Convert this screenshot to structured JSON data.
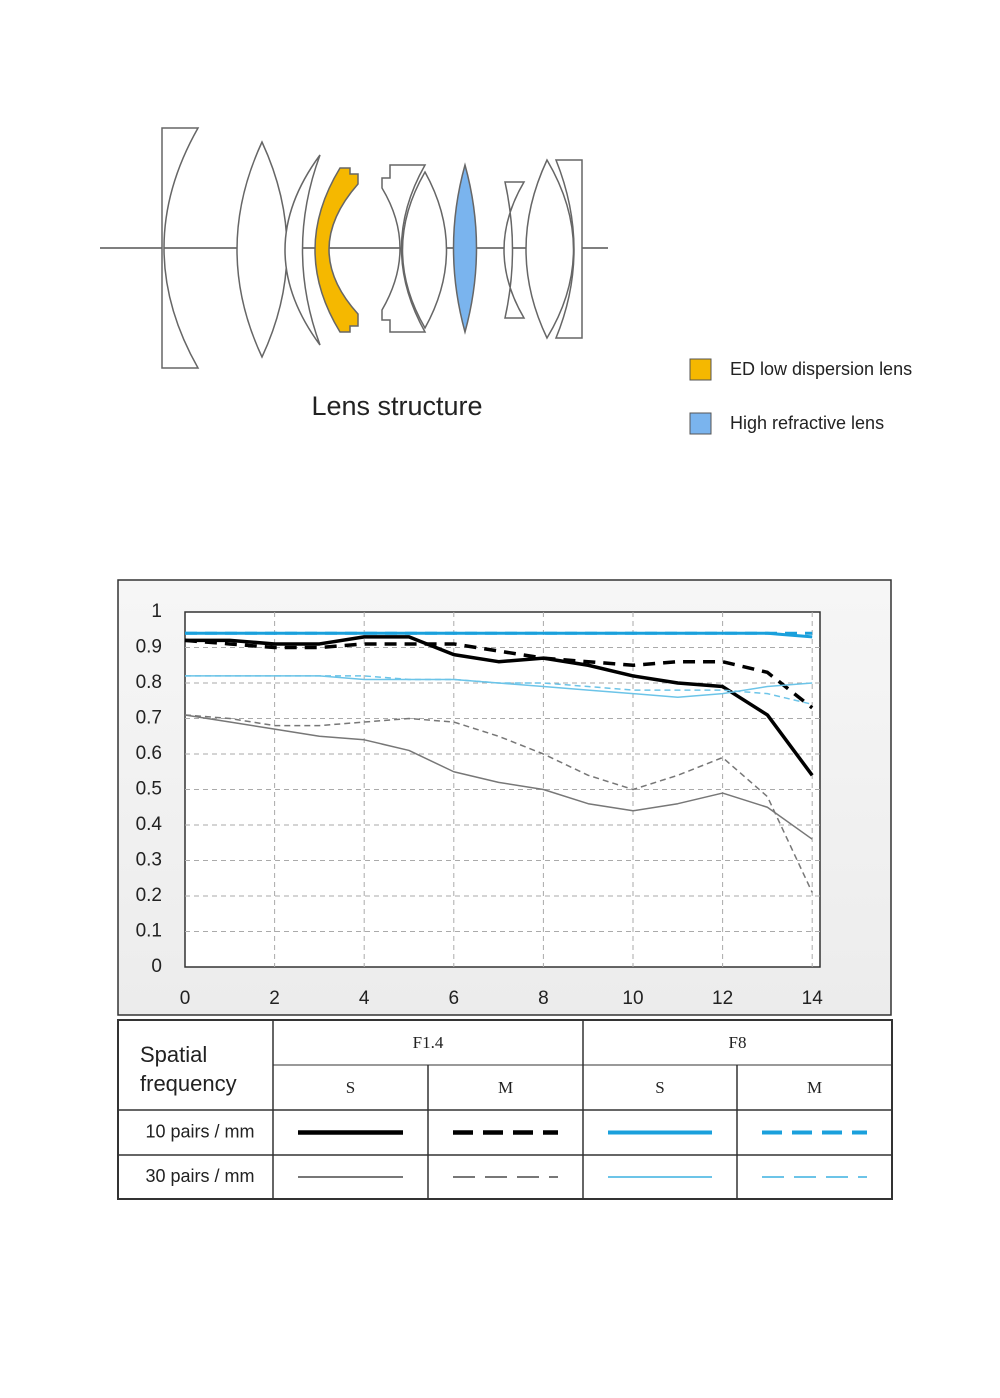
{
  "lens_structure": {
    "caption": "Lens structure",
    "legend": [
      {
        "label": "ED low dispersion lens",
        "color": "#f5b800"
      },
      {
        "label": "High refractive lens",
        "color": "#7ab4ee"
      }
    ]
  },
  "chart_data": {
    "type": "line",
    "x": [
      0,
      1,
      2,
      3,
      4,
      5,
      6,
      7,
      8,
      9,
      10,
      11,
      12,
      13,
      14
    ],
    "xlim": [
      0,
      14.2
    ],
    "ylim": [
      0,
      1
    ],
    "xticks": [
      0,
      2,
      4,
      6,
      8,
      10,
      12,
      14
    ],
    "yticks": [
      0,
      0.1,
      0.2,
      0.3,
      0.4,
      0.5,
      0.6,
      0.7,
      0.8,
      0.9,
      1
    ],
    "grid": true,
    "series": [
      {
        "color": "#000000",
        "dash": "solid",
        "width": 3.5,
        "values": [
          0.92,
          0.92,
          0.91,
          0.91,
          0.93,
          0.93,
          0.88,
          0.86,
          0.87,
          0.85,
          0.82,
          0.8,
          0.79,
          0.71,
          0.54
        ]
      },
      {
        "color": "#000000",
        "dash": "dashed",
        "width": 3.5,
        "values": [
          0.92,
          0.91,
          0.9,
          0.9,
          0.91,
          0.91,
          0.91,
          0.89,
          0.87,
          0.86,
          0.85,
          0.86,
          0.86,
          0.83,
          0.73
        ]
      },
      {
        "color": "#1aa0dc",
        "dash": "solid",
        "width": 3,
        "values": [
          0.94,
          0.94,
          0.94,
          0.94,
          0.94,
          0.94,
          0.94,
          0.94,
          0.94,
          0.94,
          0.94,
          0.94,
          0.94,
          0.94,
          0.93
        ]
      },
      {
        "color": "#1aa0dc",
        "dash": "dashed",
        "width": 3,
        "values": [
          0.94,
          0.94,
          0.94,
          0.94,
          0.94,
          0.94,
          0.94,
          0.94,
          0.94,
          0.94,
          0.94,
          0.94,
          0.94,
          0.94,
          0.94
        ]
      },
      {
        "color": "#777777",
        "dash": "solid",
        "width": 1.5,
        "values": [
          0.71,
          0.69,
          0.67,
          0.65,
          0.64,
          0.61,
          0.55,
          0.52,
          0.5,
          0.46,
          0.44,
          0.46,
          0.49,
          0.45,
          0.36
        ]
      },
      {
        "color": "#777777",
        "dash": "dashed",
        "width": 1.5,
        "values": [
          0.71,
          0.7,
          0.68,
          0.68,
          0.69,
          0.7,
          0.69,
          0.65,
          0.6,
          0.54,
          0.5,
          0.54,
          0.59,
          0.48,
          0.21
        ]
      },
      {
        "color": "#6cc4e8",
        "dash": "solid",
        "width": 1.5,
        "values": [
          0.82,
          0.82,
          0.82,
          0.82,
          0.81,
          0.81,
          0.81,
          0.8,
          0.79,
          0.78,
          0.77,
          0.76,
          0.77,
          0.79,
          0.8
        ]
      },
      {
        "color": "#6cc4e8",
        "dash": "dashed",
        "width": 1.5,
        "values": [
          0.82,
          0.82,
          0.82,
          0.82,
          0.82,
          0.81,
          0.81,
          0.8,
          0.8,
          0.79,
          0.78,
          0.78,
          0.78,
          0.77,
          0.74
        ]
      }
    ]
  },
  "legend_table": {
    "header": "Spatial frequency",
    "apertures": [
      "F1.4",
      "F8"
    ],
    "types": [
      "S",
      "M",
      "S",
      "M"
    ],
    "rows": [
      "10 pairs / mm",
      "30 pairs / mm"
    ]
  }
}
